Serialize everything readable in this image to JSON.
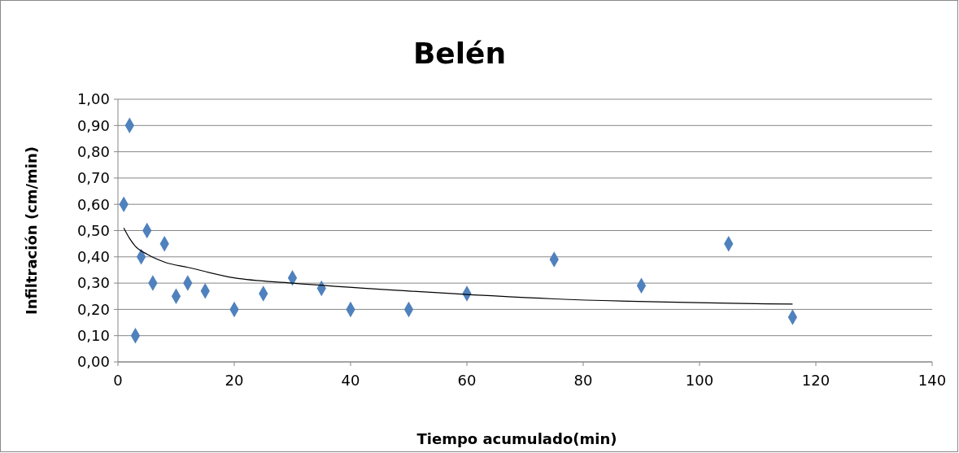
{
  "chart_data": {
    "type": "scatter",
    "title": "Belén",
    "xlabel": "Tiempo acumulado(min)",
    "ylabel": "Infiltración (cm/min)",
    "xlim": [
      0,
      140
    ],
    "xticks": [
      0,
      20,
      40,
      60,
      80,
      100,
      120,
      140
    ],
    "ylim": [
      0,
      1
    ],
    "yticks": [
      {
        "value": 0,
        "label": "0,00"
      },
      {
        "value": 0.1,
        "label": "0,10"
      },
      {
        "value": 0.2,
        "label": "0,20"
      },
      {
        "value": 0.3,
        "label": "0,30"
      },
      {
        "value": 0.4,
        "label": "0,40"
      },
      {
        "value": 0.5,
        "label": "0,50"
      },
      {
        "value": 0.6,
        "label": "0,60"
      },
      {
        "value": 0.7,
        "label": "0,70"
      },
      {
        "value": 0.8,
        "label": "0,80"
      },
      {
        "value": 0.9,
        "label": "0,90"
      },
      {
        "value": 1,
        "label": "1,00"
      }
    ],
    "grid": "y",
    "series": [
      {
        "color": "#4f81bd",
        "marker": "diamond",
        "x": [
          1,
          2,
          3,
          4,
          5,
          6,
          8,
          10,
          12,
          15,
          20,
          25,
          30,
          35,
          40,
          50,
          60,
          75,
          90,
          105,
          116
        ],
        "values": [
          0.6,
          0.9,
          0.1,
          0.4,
          0.5,
          0.3,
          0.45,
          0.25,
          0.3,
          0.27,
          0.2,
          0.26,
          0.32,
          0.28,
          0.2,
          0.2,
          0.26,
          0.39,
          0.29,
          0.45,
          0.17
        ]
      },
      {
        "type": "line",
        "color": "#000000",
        "marker": "none",
        "line_style": "solid",
        "x": [
          1,
          2,
          3,
          5,
          8,
          12,
          20,
          30,
          50,
          75,
          116
        ],
        "values": [
          0.51,
          0.47,
          0.44,
          0.41,
          0.38,
          0.36,
          0.32,
          0.3,
          0.27,
          0.24,
          0.22
        ]
      }
    ]
  }
}
